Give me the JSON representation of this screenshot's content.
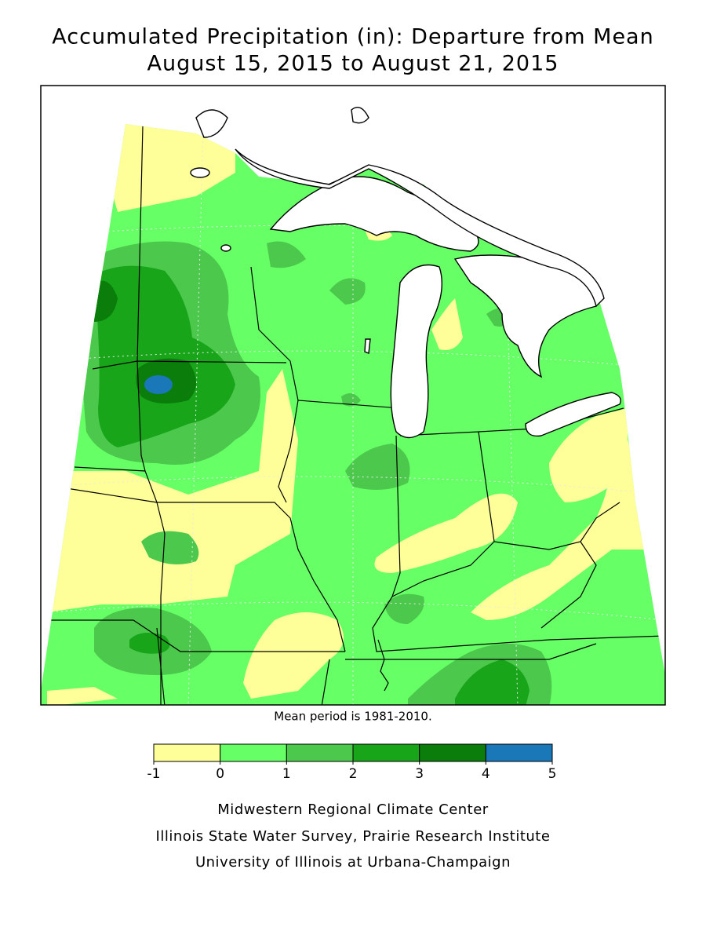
{
  "header": {
    "title": [
      "Accumulated Precipitation (in): Departure from Mean",
      "August 15, 2015 to August 21, 2015"
    ]
  },
  "note": "Mean period is 1981-2010.",
  "legend": {
    "bins": [
      -1,
      0,
      1,
      2,
      3,
      4,
      5
    ],
    "colors": [
      "#ffff99",
      "#66ff66",
      "#4cc84c",
      "#19a519",
      "#0a7d0a",
      "#1a78b8"
    ]
  },
  "credits": [
    "Midwestern Regional Climate Center",
    "Illinois State Water Survey, Prairie Research Institute",
    "University of Illinois at Urbana-Champaign"
  ]
}
